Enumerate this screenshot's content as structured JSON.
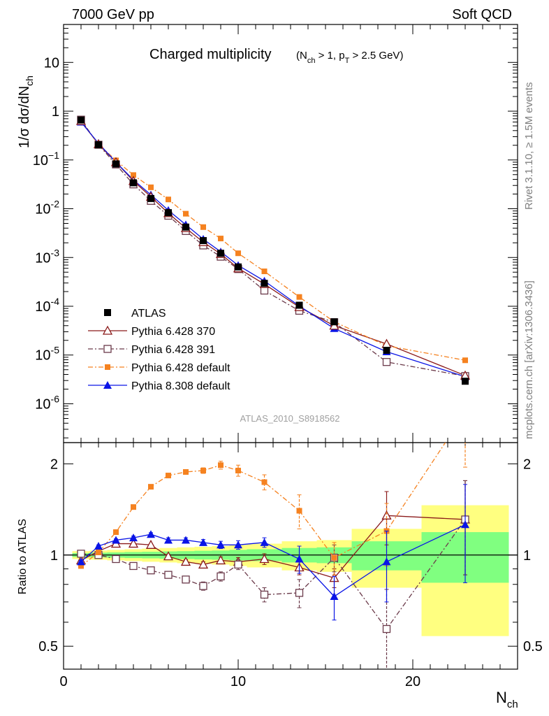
{
  "header": {
    "left": "7000 GeV pp",
    "right": "Soft QCD"
  },
  "side_labels": {
    "rivet": "Rivet 3.1.10, ≥ 1.5M events",
    "mcplots": "mcplots.cern.ch [arXiv:1306.3436]"
  },
  "analysis_id": "ATLAS_2010_S8918562",
  "colors": {
    "data": "#000000",
    "p6_370": "#8b1a1a",
    "p6_391": "#6b3a4a",
    "p6_default": "#f58220",
    "p8_default": "#0a14e6",
    "band_outer": "#ffff80",
    "band_inner": "#80ff80"
  },
  "chart_data": [
    {
      "type": "scatter",
      "panel": "main",
      "title_main": "Charged multiplicity",
      "title_sub": "(N",
      "title_sub_ch": "ch",
      "title_sub_mid": " > 1, p",
      "title_sub_T": "T",
      "title_sub_end": " > 2.5 GeV)",
      "ylabel": "1/σ dσ/dN",
      "ylabel_sub": "ch",
      "yscale": "log",
      "xlim": [
        0,
        26
      ],
      "ylim": [
        1.6e-07,
        60
      ],
      "ytick_labels": [
        {
          "v": 10,
          "base": "10",
          "exp": ""
        },
        {
          "v": 1,
          "base": "1",
          "exp": ""
        },
        {
          "v": 0.1,
          "base": "10",
          "exp": "−1"
        },
        {
          "v": 0.01,
          "base": "10",
          "exp": "-2"
        },
        {
          "v": 0.001,
          "base": "10",
          "exp": "-3"
        },
        {
          "v": 0.0001,
          "base": "10",
          "exp": "-4"
        },
        {
          "v": 1e-05,
          "base": "10",
          "exp": "-5"
        },
        {
          "v": 1e-06,
          "base": "10",
          "exp": "-6"
        }
      ],
      "x": [
        1,
        2,
        3,
        4,
        5,
        6,
        7,
        8,
        9,
        10,
        11.5,
        13.5,
        15.5,
        18.5,
        23
      ],
      "series": [
        {
          "name": "ATLAS",
          "key": "data",
          "style": "data",
          "values": [
            0.66,
            0.205,
            0.083,
            0.034,
            0.0162,
            0.0083,
            0.0042,
            0.00222,
            0.00122,
            0.00064,
            0.000295,
            0.000105,
            4.8e-05,
            1.25e-05,
            2.9e-06
          ]
        },
        {
          "name": "Pythia 6.428 370",
          "key": "p6_370",
          "style": "open-triangle-solid",
          "values": [
            0.63,
            0.21,
            0.09,
            0.037,
            0.0176,
            0.0081,
            0.004,
            0.00207,
            0.00118,
            0.0006,
            0.000285,
            9.6e-05,
            4e-05,
            1.69e-05,
            3.8e-06
          ]
        },
        {
          "name": "Pythia 6.428 391",
          "key": "p6_391",
          "style": "open-square-dashdot",
          "values": [
            0.67,
            0.205,
            0.081,
            0.0316,
            0.0145,
            0.0072,
            0.0035,
            0.00177,
            0.00104,
            0.00058,
            0.00021,
            8.1e-05,
            4.7e-05,
            7.2e-06,
            3.7e-06
          ]
        },
        {
          "name": "Pythia 6.428 default",
          "key": "p6_default",
          "style": "filled-square-dashdot",
          "values": [
            0.61,
            0.21,
            0.098,
            0.049,
            0.0275,
            0.0155,
            0.0079,
            0.0042,
            0.00245,
            0.00122,
            0.00052,
            0.000155,
            4.8e-05,
            1.55e-05,
            7.8e-06
          ]
        },
        {
          "name": "Pythia 8.308 default",
          "key": "p8_default",
          "style": "filled-triangle-solid",
          "values": [
            0.6,
            0.22,
            0.09,
            0.039,
            0.0193,
            0.0093,
            0.0047,
            0.00238,
            0.00131,
            0.00069,
            0.00033,
            0.000101,
            3.5e-05,
            1.17e-05,
            3.6e-06
          ]
        }
      ]
    },
    {
      "type": "line",
      "panel": "ratio",
      "ylabel": "Ratio to ATLAS",
      "xlabel": "N",
      "xlabel_sub": "ch",
      "yscale": "log",
      "xlim": [
        0,
        26
      ],
      "ylim": [
        0.42,
        2.35
      ],
      "ytick_labels": [
        {
          "v": 0.5,
          "label": "0.5"
        },
        {
          "v": 1,
          "label": "1"
        },
        {
          "v": 2,
          "label": "2"
        }
      ],
      "xtick_labels": [
        {
          "v": 0,
          "label": "0"
        },
        {
          "v": 10,
          "label": "10"
        },
        {
          "v": 20,
          "label": "20"
        }
      ],
      "band_bins": [
        {
          "x0": 0.5,
          "x1": 1.5,
          "outer": [
            0.97,
            1.03
          ],
          "inner": [
            0.985,
            1.015
          ]
        },
        {
          "x0": 1.5,
          "x1": 2.5,
          "outer": [
            0.965,
            1.035
          ],
          "inner": [
            0.982,
            1.018
          ]
        },
        {
          "x0": 2.5,
          "x1": 3.5,
          "outer": [
            0.96,
            1.04
          ],
          "inner": [
            0.98,
            1.02
          ]
        },
        {
          "x0": 3.5,
          "x1": 4.5,
          "outer": [
            0.955,
            1.045
          ],
          "inner": [
            0.977,
            1.023
          ]
        },
        {
          "x0": 4.5,
          "x1": 5.5,
          "outer": [
            0.95,
            1.05
          ],
          "inner": [
            0.975,
            1.025
          ]
        },
        {
          "x0": 5.5,
          "x1": 6.5,
          "outer": [
            0.945,
            1.055
          ],
          "inner": [
            0.972,
            1.028
          ]
        },
        {
          "x0": 6.5,
          "x1": 7.5,
          "outer": [
            0.94,
            1.06
          ],
          "inner": [
            0.97,
            1.03
          ]
        },
        {
          "x0": 7.5,
          "x1": 8.5,
          "outer": [
            0.935,
            1.065
          ],
          "inner": [
            0.967,
            1.033
          ]
        },
        {
          "x0": 8.5,
          "x1": 9.5,
          "outer": [
            0.93,
            1.07
          ],
          "inner": [
            0.965,
            1.035
          ]
        },
        {
          "x0": 9.5,
          "x1": 10.5,
          "outer": [
            0.92,
            1.08
          ],
          "inner": [
            0.96,
            1.04
          ]
        },
        {
          "x0": 10.5,
          "x1": 12.5,
          "outer": [
            0.91,
            1.09
          ],
          "inner": [
            0.955,
            1.045
          ]
        },
        {
          "x0": 12.5,
          "x1": 14.5,
          "outer": [
            0.89,
            1.11
          ],
          "inner": [
            0.945,
            1.055
          ]
        },
        {
          "x0": 14.5,
          "x1": 16.5,
          "outer": [
            0.88,
            1.12
          ],
          "inner": [
            0.94,
            1.06
          ]
        },
        {
          "x0": 16.5,
          "x1": 20.5,
          "outer": [
            0.78,
            1.22
          ],
          "inner": [
            0.89,
            1.11
          ]
        },
        {
          "x0": 20.5,
          "x1": 25.5,
          "outer": [
            0.54,
            1.46
          ],
          "inner": [
            0.81,
            1.19
          ]
        }
      ],
      "x": [
        1,
        2,
        3,
        4,
        5,
        6,
        7,
        8,
        9,
        10,
        11.5,
        13.5,
        15.5,
        18.5,
        23
      ],
      "series": [
        {
          "name": "Pythia 6.428 370",
          "key": "p6_370",
          "style": "open-triangle-solid",
          "values": [
            0.96,
            1.03,
            1.09,
            1.09,
            1.08,
            0.99,
            0.95,
            0.93,
            0.96,
            0.95,
            0.97,
            0.91,
            0.84,
            1.35,
            1.31
          ],
          "err": [
            0.01,
            0.01,
            0.01,
            0.01,
            0.01,
            0.015,
            0.015,
            0.02,
            0.025,
            0.03,
            0.04,
            0.05,
            0.06,
            0.27,
            0.45
          ]
        },
        {
          "name": "Pythia 6.428 391",
          "key": "p6_391",
          "style": "open-square-dashdot",
          "values": [
            1.01,
            1.0,
            0.97,
            0.92,
            0.89,
            0.86,
            0.83,
            0.79,
            0.85,
            0.93,
            0.74,
            0.75,
            0.98,
            0.57,
            1.31
          ],
          "err": [
            0.01,
            0.01,
            0.01,
            0.01,
            0.015,
            0.015,
            0.02,
            0.025,
            0.03,
            0.035,
            0.04,
            0.08,
            0.1,
            0.2,
            0.45
          ]
        },
        {
          "name": "Pythia 6.428 default",
          "key": "p6_default",
          "style": "filled-square-dashdot",
          "values": [
            0.92,
            1.02,
            1.19,
            1.44,
            1.68,
            1.83,
            1.88,
            1.9,
            1.98,
            1.9,
            1.74,
            1.4,
            0.98,
            1.2,
            2.95
          ],
          "err": [
            0.01,
            0.01,
            0.015,
            0.02,
            0.025,
            0.03,
            0.035,
            0.04,
            0.06,
            0.08,
            0.1,
            0.18,
            0.12,
            0.28,
            1.0
          ]
        },
        {
          "name": "Pythia 8.308 default",
          "key": "p8_default",
          "style": "filled-triangle-solid",
          "values": [
            0.95,
            1.07,
            1.12,
            1.14,
            1.17,
            1.12,
            1.12,
            1.1,
            1.08,
            1.08,
            1.1,
            0.97,
            0.73,
            0.95,
            1.26
          ],
          "err": [
            0.01,
            0.01,
            0.01,
            0.015,
            0.015,
            0.02,
            0.02,
            0.025,
            0.03,
            0.035,
            0.04,
            0.1,
            0.12,
            0.25,
            0.45
          ]
        }
      ]
    }
  ]
}
